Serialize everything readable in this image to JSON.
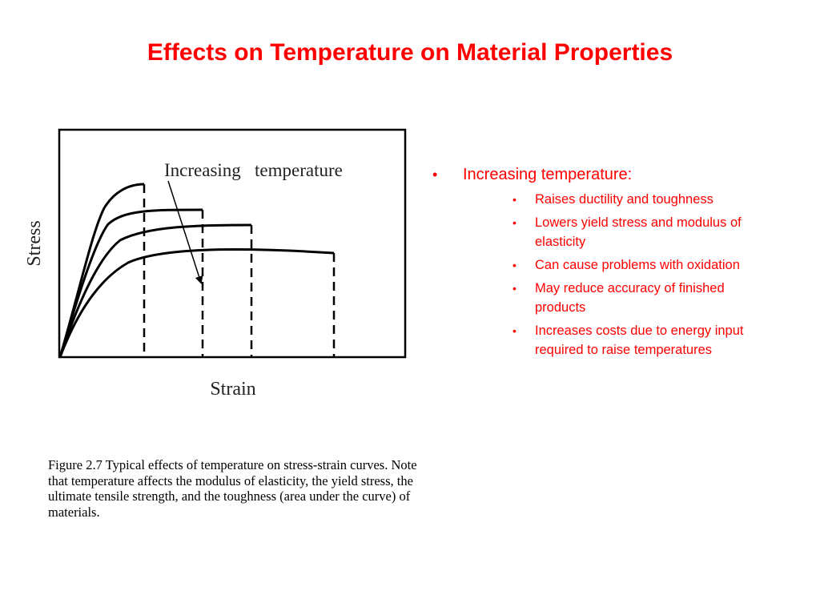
{
  "title": "Effects on Temperature on Material Properties",
  "figure": {
    "annotation": "Increasing   temperature",
    "y_axis_label": "Stress",
    "x_axis_label": "Strain",
    "caption": "Figure 2.7  Typical effects of temperature on stress-strain curves.  Note that temperature affects the modulus of elasticity, the yield stress, the ultimate tensile strength, and the toughness (area under the curve) of materials."
  },
  "bullets": {
    "main": "Increasing temperature:",
    "bullet_symbol": "•",
    "items": [
      "Raises ductility and toughness",
      "Lowers yield stress and modulus of elasticity",
      "Can cause problems with oxidation",
      "May reduce accuracy of finished products",
      "Increases costs due to energy input required to raise temperatures"
    ]
  },
  "colors": {
    "title": "#ff0000",
    "bullets": "#ff0000",
    "figure_ink": "#000000"
  }
}
